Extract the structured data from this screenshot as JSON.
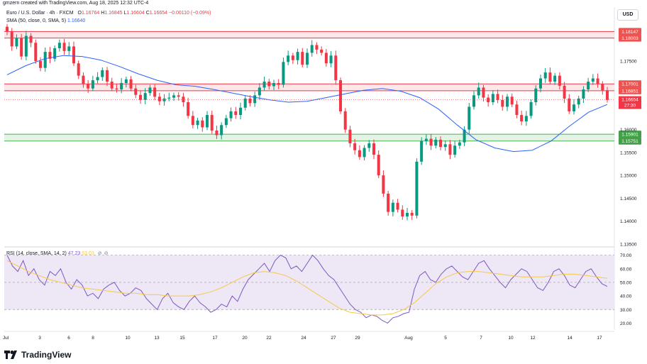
{
  "header": {
    "credit": "gmzern created with TradingView.com, Aug 18, 2025 12:32 UTC-4",
    "symbol": "Euro / U.S. Dollar · 4h · FXCM",
    "ohlc": {
      "o_label": "O",
      "o": "1.16764",
      "h_label": "H",
      "h": "1.16845",
      "l_label": "L",
      "l": "1.16604",
      "c_label": "C",
      "c": "1.16654",
      "change": "−0.00110 (−0.09%)"
    },
    "sma_label": "SMA (50, close, 0, SMA, 5)",
    "sma_value": "1.16640",
    "currency": "USD"
  },
  "rsi_header": {
    "label": "RSI (14, close, SMA, 14, 2)",
    "rsi": "47.23",
    "rsi_ma": "53.03"
  },
  "footer": {
    "brand": "TradingView"
  },
  "colors": {
    "up": "#089981",
    "down": "#f23645",
    "sma": "#2962ff",
    "rsi": "#7e57c2",
    "rsi_ma": "#f7c948",
    "resistance_fill": "#fde7e9",
    "resistance_line": "#f23645",
    "support_fill": "#e3f4e6",
    "support_line": "#4caf50",
    "rsi_band": "#ede7f6"
  },
  "chart_data": [
    {
      "type": "candlestick",
      "title": "Euro / U.S. Dollar · 4h · FXCM",
      "ylim": [
        1.1345,
        1.1868
      ],
      "price_ticks": [
        "1.18500",
        "1.17500",
        "1.16000",
        "1.15500",
        "1.15000",
        "1.14500",
        "1.14000",
        "1.13500"
      ],
      "x_ticks": [
        "Jul",
        "3",
        "6",
        "8",
        "10",
        "13",
        "15",
        "17",
        "20",
        "22",
        "24",
        "27",
        "29",
        "Aug",
        "5",
        "7",
        "10",
        "12",
        "14",
        "17"
      ],
      "zones": [
        {
          "name": "resistance-1",
          "top": 1.18147,
          "bottom": 1.18003,
          "labels": [
            "1.18147",
            "1.18003"
          ]
        },
        {
          "name": "resistance-2",
          "top": 1.17001,
          "bottom": 1.16851,
          "labels": [
            "1.17001",
            "1.16851"
          ]
        },
        {
          "name": "support",
          "top": 1.15901,
          "bottom": 1.15751,
          "labels": [
            "1.15901",
            "1.15751"
          ]
        }
      ],
      "last_price": {
        "value": "1.16654",
        "countdown": "27:30"
      },
      "close_series": [
        1.1815,
        1.1782,
        1.18,
        1.176,
        1.1805,
        1.179,
        1.175,
        1.1735,
        1.177,
        1.1755,
        1.1778,
        1.179,
        1.1772,
        1.1782,
        1.1745,
        1.1718,
        1.17,
        1.169,
        1.1708,
        1.1715,
        1.173,
        1.1705,
        1.169,
        1.1688,
        1.1702,
        1.171,
        1.169,
        1.1676,
        1.1665,
        1.168,
        1.1692,
        1.1672,
        1.1662,
        1.1668,
        1.167,
        1.1675,
        1.1672,
        1.166,
        1.163,
        1.161,
        1.162,
        1.1605,
        1.1632,
        1.1598,
        1.1588,
        1.161,
        1.1625,
        1.164,
        1.1632,
        1.1648,
        1.1668,
        1.1658,
        1.1675,
        1.1692,
        1.1705,
        1.1695,
        1.1702,
        1.1698,
        1.1748,
        1.1762,
        1.1752,
        1.177,
        1.1742,
        1.1768,
        1.1785,
        1.1775,
        1.1768,
        1.1745,
        1.1762,
        1.1708,
        1.164,
        1.16,
        1.157,
        1.1555,
        1.154,
        1.156,
        1.157,
        1.1545,
        1.15,
        1.146,
        1.142,
        1.144,
        1.1425,
        1.141,
        1.1418,
        1.1412,
        1.153,
        1.1575,
        1.158,
        1.1565,
        1.1578,
        1.1562,
        1.1568,
        1.1545,
        1.1565,
        1.1572,
        1.16,
        1.165,
        1.1675,
        1.1692,
        1.167,
        1.166,
        1.1678,
        1.1665,
        1.165,
        1.1672,
        1.1655,
        1.1632,
        1.1618,
        1.163,
        1.166,
        1.169,
        1.1712,
        1.1725,
        1.1705,
        1.1718,
        1.1696,
        1.1668,
        1.164,
        1.1655,
        1.1668,
        1.1688,
        1.1705,
        1.1712,
        1.17,
        1.1686,
        1.1665
      ],
      "sma_series": [
        1.172,
        1.174,
        1.1755,
        1.1762,
        1.176,
        1.1752,
        1.1738,
        1.1722,
        1.1708,
        1.1698,
        1.1695,
        1.1688,
        1.168,
        1.1672,
        1.1665,
        1.166,
        1.1662,
        1.167,
        1.1678,
        1.1686,
        1.169,
        1.1684,
        1.167,
        1.1645,
        1.161,
        1.1578,
        1.156,
        1.1552,
        1.1555,
        1.1575,
        1.1608,
        1.1638,
        1.1655
      ],
      "series": [
        {
          "name": "SMA (50, close, 0, SMA, 5)",
          "color": "#2962ff"
        }
      ]
    },
    {
      "type": "line",
      "title": "RSI (14, close, SMA, 14, 2)",
      "ylim": [
        15,
        75
      ],
      "y_ticks": [
        "70.00",
        "60.00",
        "50.00",
        "40.00",
        "30.00",
        "20.00"
      ],
      "bands": {
        "upper": 70,
        "middle": 50,
        "lower": 30
      },
      "series": [
        {
          "name": "RSI",
          "color": "#7e57c2",
          "values": [
            70,
            62,
            58,
            66,
            55,
            60,
            52,
            48,
            58,
            55,
            60,
            50,
            45,
            52,
            48,
            40,
            42,
            38,
            45,
            48,
            50,
            44,
            40,
            42,
            46,
            44,
            38,
            34,
            30,
            38,
            42,
            35,
            32,
            30,
            36,
            40,
            35,
            32,
            28,
            30,
            34,
            32,
            40,
            36,
            45,
            52,
            56,
            60,
            64,
            58,
            66,
            70,
            68,
            60,
            62,
            58,
            64,
            70,
            66,
            60,
            55,
            52,
            46,
            40,
            34,
            30,
            28,
            24,
            26,
            25,
            22,
            20,
            24,
            25,
            27,
            28,
            45,
            55,
            58,
            52,
            50,
            56,
            60,
            62,
            58,
            54,
            52,
            58,
            64,
            66,
            60,
            55,
            50,
            46,
            52,
            56,
            60,
            58,
            52,
            46,
            44,
            50,
            58,
            60,
            55,
            48,
            46,
            52,
            58,
            60,
            54,
            49,
            47
          ]
        },
        {
          "name": "RSI-based MA",
          "color": "#f7c948",
          "values": [
            66,
            62,
            58,
            55,
            52,
            50,
            48,
            46,
            45,
            44,
            43,
            42,
            42,
            41,
            41,
            40,
            40,
            40,
            41,
            43,
            46,
            50,
            54,
            57,
            58,
            57,
            55,
            51,
            46,
            41,
            36,
            31,
            28,
            27,
            26,
            26,
            27,
            30,
            35,
            42,
            49,
            54,
            57,
            58,
            58,
            57,
            56,
            55,
            54,
            54,
            54,
            55,
            56,
            56,
            55,
            54,
            53
          ]
        }
      ]
    }
  ]
}
